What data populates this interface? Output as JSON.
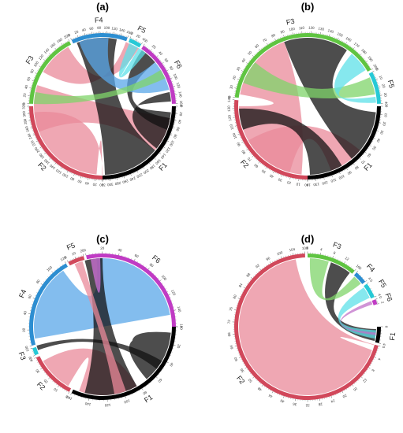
{
  "panels": [
    {
      "id": "a",
      "title": "(a)",
      "segments": [
        {
          "name": "F1",
          "color": "#000000",
          "start": 90,
          "end": 180,
          "max": 320,
          "step": 20
        },
        {
          "name": "F2",
          "color": "#d1485b",
          "start": 180,
          "end": 270,
          "max": 320,
          "step": 20
        },
        {
          "name": "F3",
          "color": "#5fc441",
          "start": 272,
          "end": 333,
          "max": 200,
          "step": 20
        },
        {
          "name": "F4",
          "color": "#2d8ed1",
          "start": 335,
          "end": 380,
          "max": 160,
          "step": 20
        },
        {
          "name": "F5",
          "color": "#27c9d6",
          "start": 382,
          "end": 392,
          "max": 40,
          "step": 20
        },
        {
          "name": "F6",
          "color": "#c03bc4",
          "start": 394,
          "end": 448,
          "max": 160,
          "step": 20
        }
      ],
      "chords": [
        {
          "a0": 185,
          "a1": 265,
          "b0": 180,
          "b1": 180,
          "color": "#e98a99"
        },
        {
          "a0": 248,
          "a1": 288,
          "b0": 100,
          "b1": 130,
          "color": "#e98a99"
        },
        {
          "a0": 300,
          "a1": 330,
          "b0": 392,
          "b1": 380,
          "color": "#e98a99"
        },
        {
          "a0": 130,
          "a1": 178,
          "b0": 338,
          "b1": 372,
          "color": "#111111"
        },
        {
          "a0": 95,
          "a1": 128,
          "b0": 438,
          "b1": 446,
          "color": "#111111"
        },
        {
          "a0": 100,
          "a1": 110,
          "b0": 395,
          "b1": 410,
          "color": "#111111"
        },
        {
          "a0": 340,
          "a1": 365,
          "b0": 410,
          "b1": 436,
          "color": "#5aa7e8"
        },
        {
          "a0": 272,
          "a1": 282,
          "b0": 418,
          "b1": 426,
          "color": "#7fd46a"
        },
        {
          "a0": 383,
          "a1": 391,
          "b0": 392,
          "b1": 399,
          "color": "#5ee0e8"
        }
      ]
    },
    {
      "id": "b",
      "title": "(b)",
      "segments": [
        {
          "name": "F1",
          "color": "#000000",
          "start": 90,
          "end": 180,
          "max": 140,
          "step": 10
        },
        {
          "name": "F2",
          "color": "#d1485b",
          "start": 180,
          "end": 275,
          "max": 140,
          "step": 10
        },
        {
          "name": "F3",
          "color": "#5fc441",
          "start": 277,
          "end": 420,
          "max": 200,
          "step": 10
        },
        {
          "name": "F5",
          "color": "#27c9d6",
          "start": 422,
          "end": 448,
          "max": 40,
          "step": 10
        }
      ],
      "chords": [
        {
          "a0": 185,
          "a1": 270,
          "b0": 280,
          "b1": 340,
          "color": "#e98a99"
        },
        {
          "a0": 195,
          "a1": 240,
          "b0": 130,
          "b1": 160,
          "color": "#e98a99"
        },
        {
          "a0": 340,
          "a1": 395,
          "b0": 95,
          "b1": 140,
          "color": "#111111"
        },
        {
          "a0": 150,
          "a1": 178,
          "b0": 250,
          "b1": 268,
          "color": "#111111"
        },
        {
          "a0": 290,
          "a1": 310,
          "b0": 425,
          "b1": 440,
          "color": "#7fd46a"
        },
        {
          "a0": 400,
          "a1": 418,
          "b0": 442,
          "b1": 447,
          "color": "#5ee0e8"
        }
      ]
    },
    {
      "id": "c",
      "title": "(c)",
      "segments": [
        {
          "name": "F1",
          "color": "#000000",
          "start": 90,
          "end": 205,
          "max": 160,
          "step": 20
        },
        {
          "name": "F2",
          "color": "#d1485b",
          "start": 207,
          "end": 245,
          "max": 40,
          "step": 10
        },
        {
          "name": "F3",
          "color": "#27c9d6",
          "start": 247,
          "end": 253,
          "max": 10,
          "step": 10
        },
        {
          "name": "F4",
          "color": "#2d8ed1",
          "start": 255,
          "end": 330,
          "max": 120,
          "step": 20
        },
        {
          "name": "F5",
          "color": "#d1485b",
          "start": 332,
          "end": 345,
          "max": 20,
          "step": 10
        },
        {
          "name": "F6",
          "color": "#c03bc4",
          "start": 347,
          "end": 450,
          "max": 160,
          "step": 20
        }
      ],
      "chords": [
        {
          "a0": 260,
          "a1": 325,
          "b0": 355,
          "b1": 440,
          "color": "#5aa7e8"
        },
        {
          "a0": 210,
          "a1": 240,
          "b0": 150,
          "b1": 200,
          "color": "#e98a99"
        },
        {
          "a0": 95,
          "a1": 140,
          "b0": 100,
          "b1": 130,
          "color": "#111111"
        },
        {
          "a0": 150,
          "a1": 195,
          "b0": 345,
          "b1": 360,
          "color": "#111111"
        },
        {
          "a0": 250,
          "a1": 254,
          "b0": 120,
          "b1": 128,
          "color": "#111111"
        },
        {
          "a0": 336,
          "a1": 343,
          "b0": 160,
          "b1": 170,
          "color": "#e98a99"
        },
        {
          "a0": 350,
          "a1": 358,
          "b0": 350,
          "b1": 358,
          "color": "#d070d8"
        }
      ]
    },
    {
      "id": "d",
      "title": "(d)",
      "segments": [
        {
          "name": "F1",
          "color": "#000000",
          "start": 90,
          "end": 103,
          "max": 4,
          "step": 4
        },
        {
          "name": "F2",
          "color": "#d1485b",
          "start": 105,
          "end": 358,
          "max": 108,
          "step": 4
        },
        {
          "name": "F3",
          "color": "#5fc441",
          "start": 360,
          "end": 400,
          "max": 16,
          "step": 4
        },
        {
          "name": "F4",
          "color": "#2d8ed1",
          "start": 402,
          "end": 412,
          "max": 4,
          "step": 4
        },
        {
          "name": "F5",
          "color": "#27c9d6",
          "start": 414,
          "end": 426,
          "max": 4,
          "step": 4
        },
        {
          "name": "F6",
          "color": "#c03bc4",
          "start": 428,
          "end": 432,
          "max": 2,
          "step": 2
        }
      ],
      "chords": [
        {
          "a0": 110,
          "a1": 350,
          "b0": 105,
          "b1": 105,
          "color": "#e98a99"
        },
        {
          "a0": 380,
          "a1": 398,
          "b0": 92,
          "b1": 102,
          "color": "#111111"
        },
        {
          "a0": 362,
          "a1": 378,
          "b0": 403,
          "b1": 411,
          "color": "#7fd46a"
        },
        {
          "a0": 415,
          "a1": 425,
          "b0": 93,
          "b1": 100,
          "color": "#5ee0e8"
        },
        {
          "a0": 428,
          "a1": 431,
          "b0": 95,
          "b1": 97,
          "color": "#c070c8"
        }
      ]
    }
  ]
}
